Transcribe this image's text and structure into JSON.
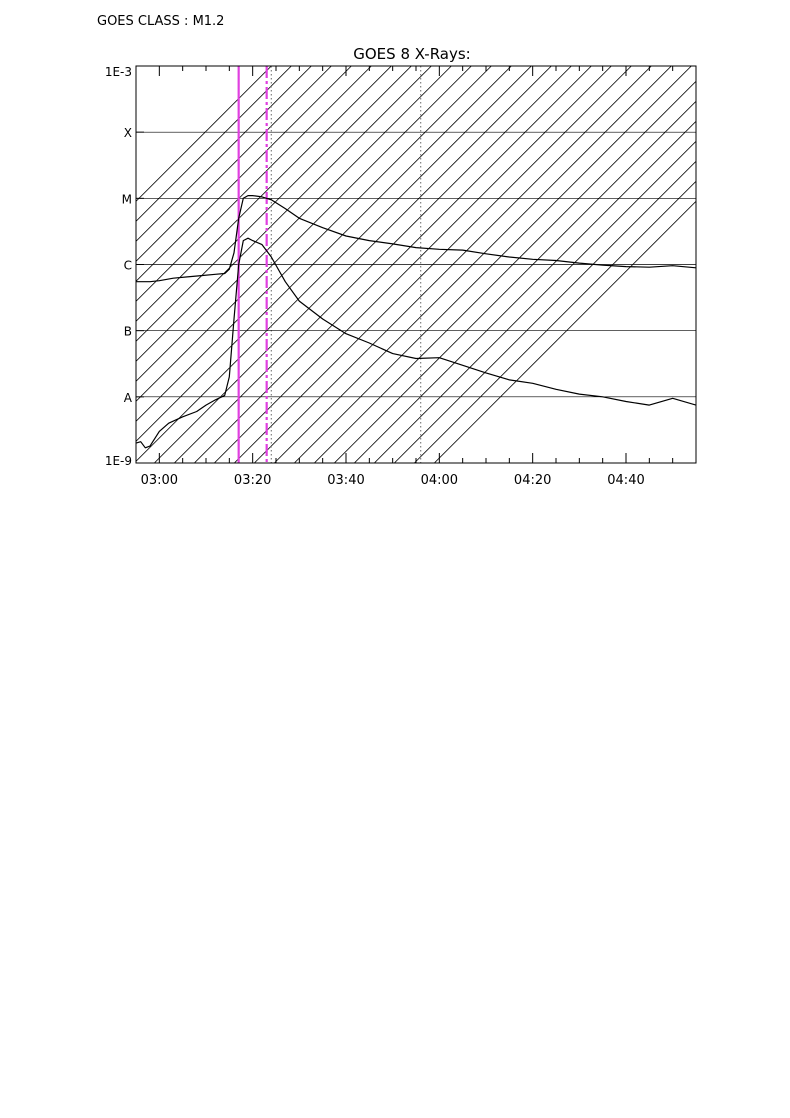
{
  "header": {
    "goes_class": "GOES CLASS : M1.2"
  },
  "chart_data": {
    "type": "line",
    "title": "GOES 8 X-Rays:",
    "xlabel": "",
    "ylabel": "",
    "y_scale": "log",
    "ylim": [
      1e-09,
      0.001
    ],
    "xlim": [
      "02:55",
      "04:55"
    ],
    "x_tick_labels": [
      "03:00",
      "03:20",
      "03:40",
      "04:00",
      "04:20",
      "04:40"
    ],
    "y_tick_labels": [
      {
        "label": "1E-9",
        "value": 1e-09
      },
      {
        "label": "A",
        "value": 1e-08
      },
      {
        "label": "B",
        "value": 1e-07
      },
      {
        "label": "C",
        "value": 1e-06
      },
      {
        "label": "M",
        "value": 1e-05
      },
      {
        "label": "X",
        "value": 0.0001
      },
      {
        "label": "1E-3",
        "value": 0.001
      }
    ],
    "grid": "horizontal lines at class levels",
    "series": [
      {
        "x": [
          "02:55",
          "02:58",
          "03:00",
          "03:03",
          "03:06",
          "03:09",
          "03:12",
          "03:14",
          "03:15",
          "03:16",
          "03:17",
          "03:18",
          "03:19",
          "03:20",
          "03:22",
          "03:24",
          "03:27",
          "03:30",
          "03:35",
          "03:40",
          "03:45",
          "03:50",
          "03:55",
          "04:00",
          "04:05",
          "04:10",
          "04:15",
          "04:20",
          "04:25",
          "04:30",
          "04:35",
          "04:40",
          "04:45",
          "04:50",
          "04:55"
        ],
        "values": [
          5.5e-07,
          5.5e-07,
          5.7e-07,
          6.2e-07,
          6.5e-07,
          6.8e-07,
          7.1e-07,
          7.3e-07,
          8.5e-07,
          1.5e-06,
          5e-06,
          1e-05,
          1.1e-05,
          1.1e-05,
          1.05e-05,
          9.5e-06,
          7e-06,
          5e-06,
          3.6e-06,
          2.7e-06,
          2.3e-06,
          2.05e-06,
          1.8e-06,
          1.7e-06,
          1.65e-06,
          1.45e-06,
          1.3e-06,
          1.2e-06,
          1.15e-06,
          1.05e-06,
          9.8e-07,
          9.3e-07,
          9.1e-07,
          9.6e-07,
          8.9e-07
        ]
      },
      {
        "x": [
          "02:55",
          "02:56",
          "02:57",
          "02:58",
          "03:00",
          "03:02",
          "03:05",
          "03:08",
          "03:10",
          "03:12",
          "03:14",
          "03:15",
          "03:16",
          "03:17",
          "03:18",
          "03:19",
          "03:20",
          "03:22",
          "03:24",
          "03:27",
          "03:30",
          "03:35",
          "03:40",
          "03:45",
          "03:50",
          "03:55",
          "04:00",
          "04:05",
          "04:10",
          "04:15",
          "04:20",
          "04:25",
          "04:30",
          "04:35",
          "04:40",
          "04:45",
          "04:50",
          "04:55"
        ],
        "values": [
          2e-09,
          2.1e-09,
          1.7e-09,
          1.8e-09,
          3e-09,
          4e-09,
          5e-09,
          6e-09,
          7.5e-09,
          9e-09,
          1.05e-08,
          2e-08,
          1.5e-07,
          1e-06,
          2.3e-06,
          2.5e-06,
          2.3e-06,
          2e-06,
          1.3e-06,
          5.5e-07,
          2.8e-07,
          1.5e-07,
          9e-08,
          6.5e-08,
          4.5e-08,
          3.8e-08,
          3.9e-08,
          3e-08,
          2.3e-08,
          1.8e-08,
          1.6e-08,
          1.3e-08,
          1.1e-08,
          1e-08,
          8.5e-09,
          7.5e-09,
          9.5e-09,
          7.5e-09
        ]
      }
    ],
    "markers": {
      "solid_line_time": "03:17",
      "dashdot_line_time": "03:23",
      "hatched_interval": [
        "03:24",
        "03:56"
      ]
    },
    "colors": {
      "curve": "#000000",
      "grid": "#000000",
      "marker": "#e040e0",
      "hatch": "#000000",
      "interval_edge": "#808080"
    }
  }
}
